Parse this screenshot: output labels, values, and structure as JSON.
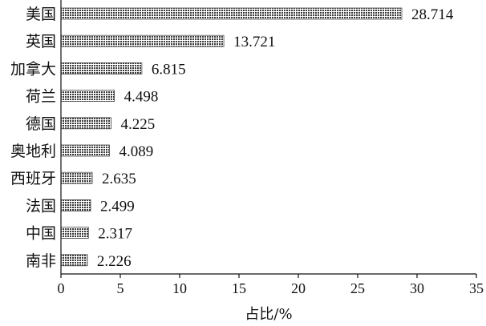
{
  "chart_data": {
    "type": "bar",
    "orientation": "horizontal",
    "categories": [
      "美国",
      "英国",
      "加拿大",
      "荷兰",
      "德国",
      "奥地利",
      "西班牙",
      "法国",
      "中国",
      "南非"
    ],
    "values": [
      28.714,
      13.721,
      6.815,
      4.498,
      4.225,
      4.089,
      2.635,
      2.499,
      2.317,
      2.226
    ],
    "value_labels": [
      "28.714",
      "13.721",
      "6.815",
      "4.498",
      "4.225",
      "4.089",
      "2.635",
      "2.499",
      "2.317",
      "2.226"
    ],
    "xlabel": "占比/%",
    "xlim": [
      0,
      35
    ],
    "xticks": [
      0,
      5,
      10,
      15,
      20,
      25,
      30,
      35
    ],
    "grid": false,
    "bar_color": "#4a4a4a"
  }
}
